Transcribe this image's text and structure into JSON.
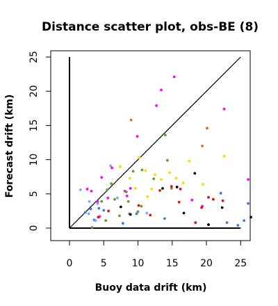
{
  "chart_data": {
    "type": "scatter",
    "title": "Distance scatter plot, obs-BE (8)",
    "xlabel": "Buoy data drift (km)",
    "ylabel": "Forecast drift (km)",
    "xlim": [
      -2.5,
      26.5
    ],
    "ylim": [
      -2,
      26
    ],
    "x_ticks": [
      "0",
      "5",
      "10",
      "15",
      "20",
      "25"
    ],
    "y_ticks": [
      "0",
      "5",
      "10",
      "15",
      "20",
      "25"
    ],
    "grid": false,
    "box": true,
    "reference_lines": [
      {
        "name": "diagonal",
        "points": [
          [
            0,
            0
          ],
          [
            25,
            25
          ]
        ],
        "color": "#000000"
      },
      {
        "name": "x-axis-bound",
        "points": [
          [
            0,
            0
          ],
          [
            25,
            0
          ]
        ],
        "color": "#000000"
      },
      {
        "name": "y-axis-bound",
        "points": [
          [
            0,
            0
          ],
          [
            0,
            25
          ]
        ],
        "color": "#000000"
      }
    ],
    "series": [
      {
        "color": "#3b79e8",
        "points": [
          [
            2.3,
            2.3
          ],
          [
            3.1,
            2.8
          ],
          [
            3.6,
            1.2
          ],
          [
            4.3,
            2.9
          ],
          [
            5.0,
            2.6
          ],
          [
            7.8,
            0.7
          ],
          [
            9.8,
            2.1
          ],
          [
            13.9,
            1.4
          ],
          [
            22.1,
            5.1
          ],
          [
            23.0,
            0.8
          ],
          [
            24.6,
            0.4
          ],
          [
            25.5,
            1.1
          ],
          [
            26.1,
            3.6
          ]
        ]
      },
      {
        "color": "#7fa5ff",
        "points": [
          [
            1.6,
            5.6
          ],
          [
            2.9,
            3.9
          ],
          [
            2.8,
            2.1
          ],
          [
            3.8,
            1.1
          ],
          [
            4.1,
            3.6
          ],
          [
            6.0,
            9.1
          ],
          [
            7.0,
            4.4
          ],
          [
            8.7,
            2.1
          ],
          [
            11.3,
            2.2
          ]
        ]
      },
      {
        "color": "#ff00ff",
        "points": [
          [
            2.6,
            5.7
          ],
          [
            3.2,
            5.4
          ],
          [
            4.1,
            3.9
          ],
          [
            4.4,
            1.7
          ],
          [
            4.7,
            7.4
          ],
          [
            5.6,
            4.4
          ],
          [
            6.2,
            8.8
          ],
          [
            8.4,
            4.7
          ],
          [
            8.1,
            5.4
          ],
          [
            8.9,
            5.8
          ],
          [
            9.9,
            13.4
          ],
          [
            12.7,
            17.9
          ],
          [
            13.4,
            20.2
          ],
          [
            15.3,
            22.1
          ],
          [
            17.9,
            4.1
          ],
          [
            19.4,
            3.2
          ],
          [
            22.6,
            17.4
          ],
          [
            26.1,
            7.1
          ]
        ]
      },
      {
        "color": "#ffd700",
        "points": [
          [
            7.4,
            9.0
          ],
          [
            8.8,
            7.3
          ],
          [
            9.6,
            5.8
          ],
          [
            10.2,
            10.3
          ],
          [
            11.1,
            8.4
          ],
          [
            11.4,
            4.6
          ],
          [
            12.0,
            5.7
          ],
          [
            12.5,
            7.8
          ],
          [
            13.4,
            7.1
          ],
          [
            14.6,
            8.1
          ],
          [
            15.6,
            7.3
          ],
          [
            16.6,
            6.6
          ],
          [
            17.5,
            9.8
          ],
          [
            22.6,
            10.5
          ],
          [
            19.5,
            6.4
          ]
        ]
      },
      {
        "color": "#5aa02c",
        "points": [
          [
            3.3,
            0.1
          ],
          [
            4.7,
            3.9
          ],
          [
            5.3,
            1.1
          ],
          [
            5.5,
            5.6
          ],
          [
            6.1,
            6.5
          ],
          [
            6.6,
            4.2
          ],
          [
            7.3,
            1.8
          ],
          [
            8.3,
            5.3
          ],
          [
            9.3,
            8.3
          ],
          [
            10.0,
            2.4
          ],
          [
            10.6,
            8.5
          ],
          [
            12.3,
            7.2
          ],
          [
            14.0,
            13.6
          ],
          [
            14.3,
            9.9
          ],
          [
            14.9,
            5.8
          ],
          [
            8.6,
            3.9
          ],
          [
            10.5,
            3.2
          ]
        ]
      },
      {
        "color": "#e01010",
        "points": [
          [
            4.2,
            1.6
          ],
          [
            5.7,
            2.5
          ],
          [
            10.1,
            3.3
          ],
          [
            11.8,
            1.9
          ],
          [
            13.2,
            5.5
          ],
          [
            14.9,
            6.1
          ],
          [
            16.0,
            3.8
          ],
          [
            16.2,
            5.7
          ],
          [
            18.4,
            0.8
          ],
          [
            19.3,
            3.0
          ],
          [
            20.3,
            4.5
          ],
          [
            21.0,
            4.2
          ],
          [
            22.4,
            4.0
          ]
        ]
      },
      {
        "color": "#c87030",
        "points": [
          [
            9.0,
            15.8
          ],
          [
            19.4,
            12.0
          ],
          [
            20.1,
            14.6
          ]
        ]
      },
      {
        "color": "#000000",
        "points": [
          [
            7.5,
            3.1
          ],
          [
            8.9,
            2.0
          ],
          [
            13.6,
            5.8
          ],
          [
            15.7,
            6.0
          ],
          [
            16.7,
            2.2
          ],
          [
            18.3,
            8.0
          ],
          [
            20.3,
            0.5
          ],
          [
            22.3,
            3.0
          ],
          [
            26.5,
            1.6
          ]
        ]
      }
    ]
  }
}
